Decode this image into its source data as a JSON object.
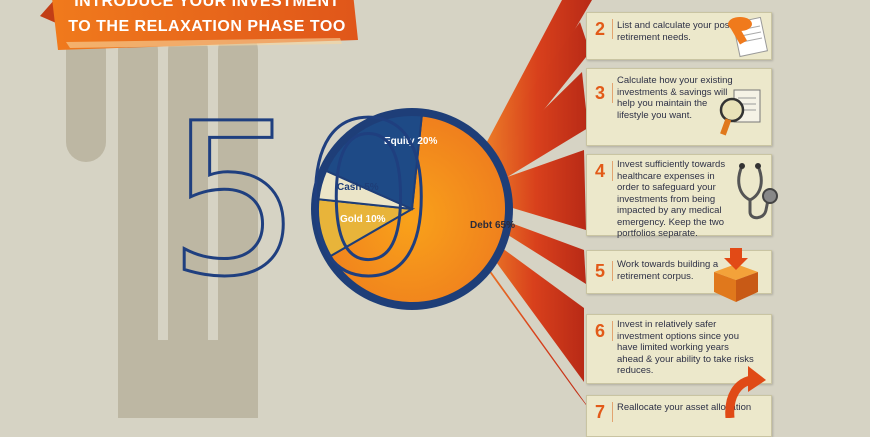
{
  "banner": {
    "line1": "INTRODUCE YOUR INVESTMENT",
    "line2": "TO THE RELAXATION PHASE TOO"
  },
  "age_label": "50",
  "pie": {
    "slices": [
      {
        "label": "Debt 65%",
        "value": 65,
        "color": "#f28c1f"
      },
      {
        "label": "Gold 10%",
        "value": 10,
        "color": "#e8b43a"
      },
      {
        "label": "Cash 5%",
        "value": 5,
        "color": "#ebe5c8"
      },
      {
        "label": "Equity 20%",
        "value": 20,
        "color": "#1e4a86"
      }
    ]
  },
  "steps": [
    {
      "number": "2",
      "text": "List and calculate your post retirement needs.",
      "icon": "pen-and-paper-icon"
    },
    {
      "number": "3",
      "text": "Calculate how your existing investments & savings will help you maintain the lifestyle you want.",
      "icon": "magnifier-document-icon"
    },
    {
      "number": "4",
      "text": "Invest sufficiently towards healthcare expenses in order to safeguard your investments from being impacted by any medical emergency. Keep the two portfolios separate.",
      "icon": "stethoscope-icon"
    },
    {
      "number": "5",
      "text": "Work towards building a retirement corpus.",
      "icon": "savings-box-icon"
    },
    {
      "number": "6",
      "text": "Invest in relatively safer investment options since you have limited working years ahead & your ability to take risks reduces.",
      "icon": "none"
    },
    {
      "number": "7",
      "text": "Reallocate your asset allocation",
      "icon": "curved-arrow-icon"
    }
  ],
  "colors": {
    "background": "#d6d3c4",
    "accent_orange": "#e25a18",
    "navy": "#1f3f7f",
    "card": "#ece8cb"
  }
}
